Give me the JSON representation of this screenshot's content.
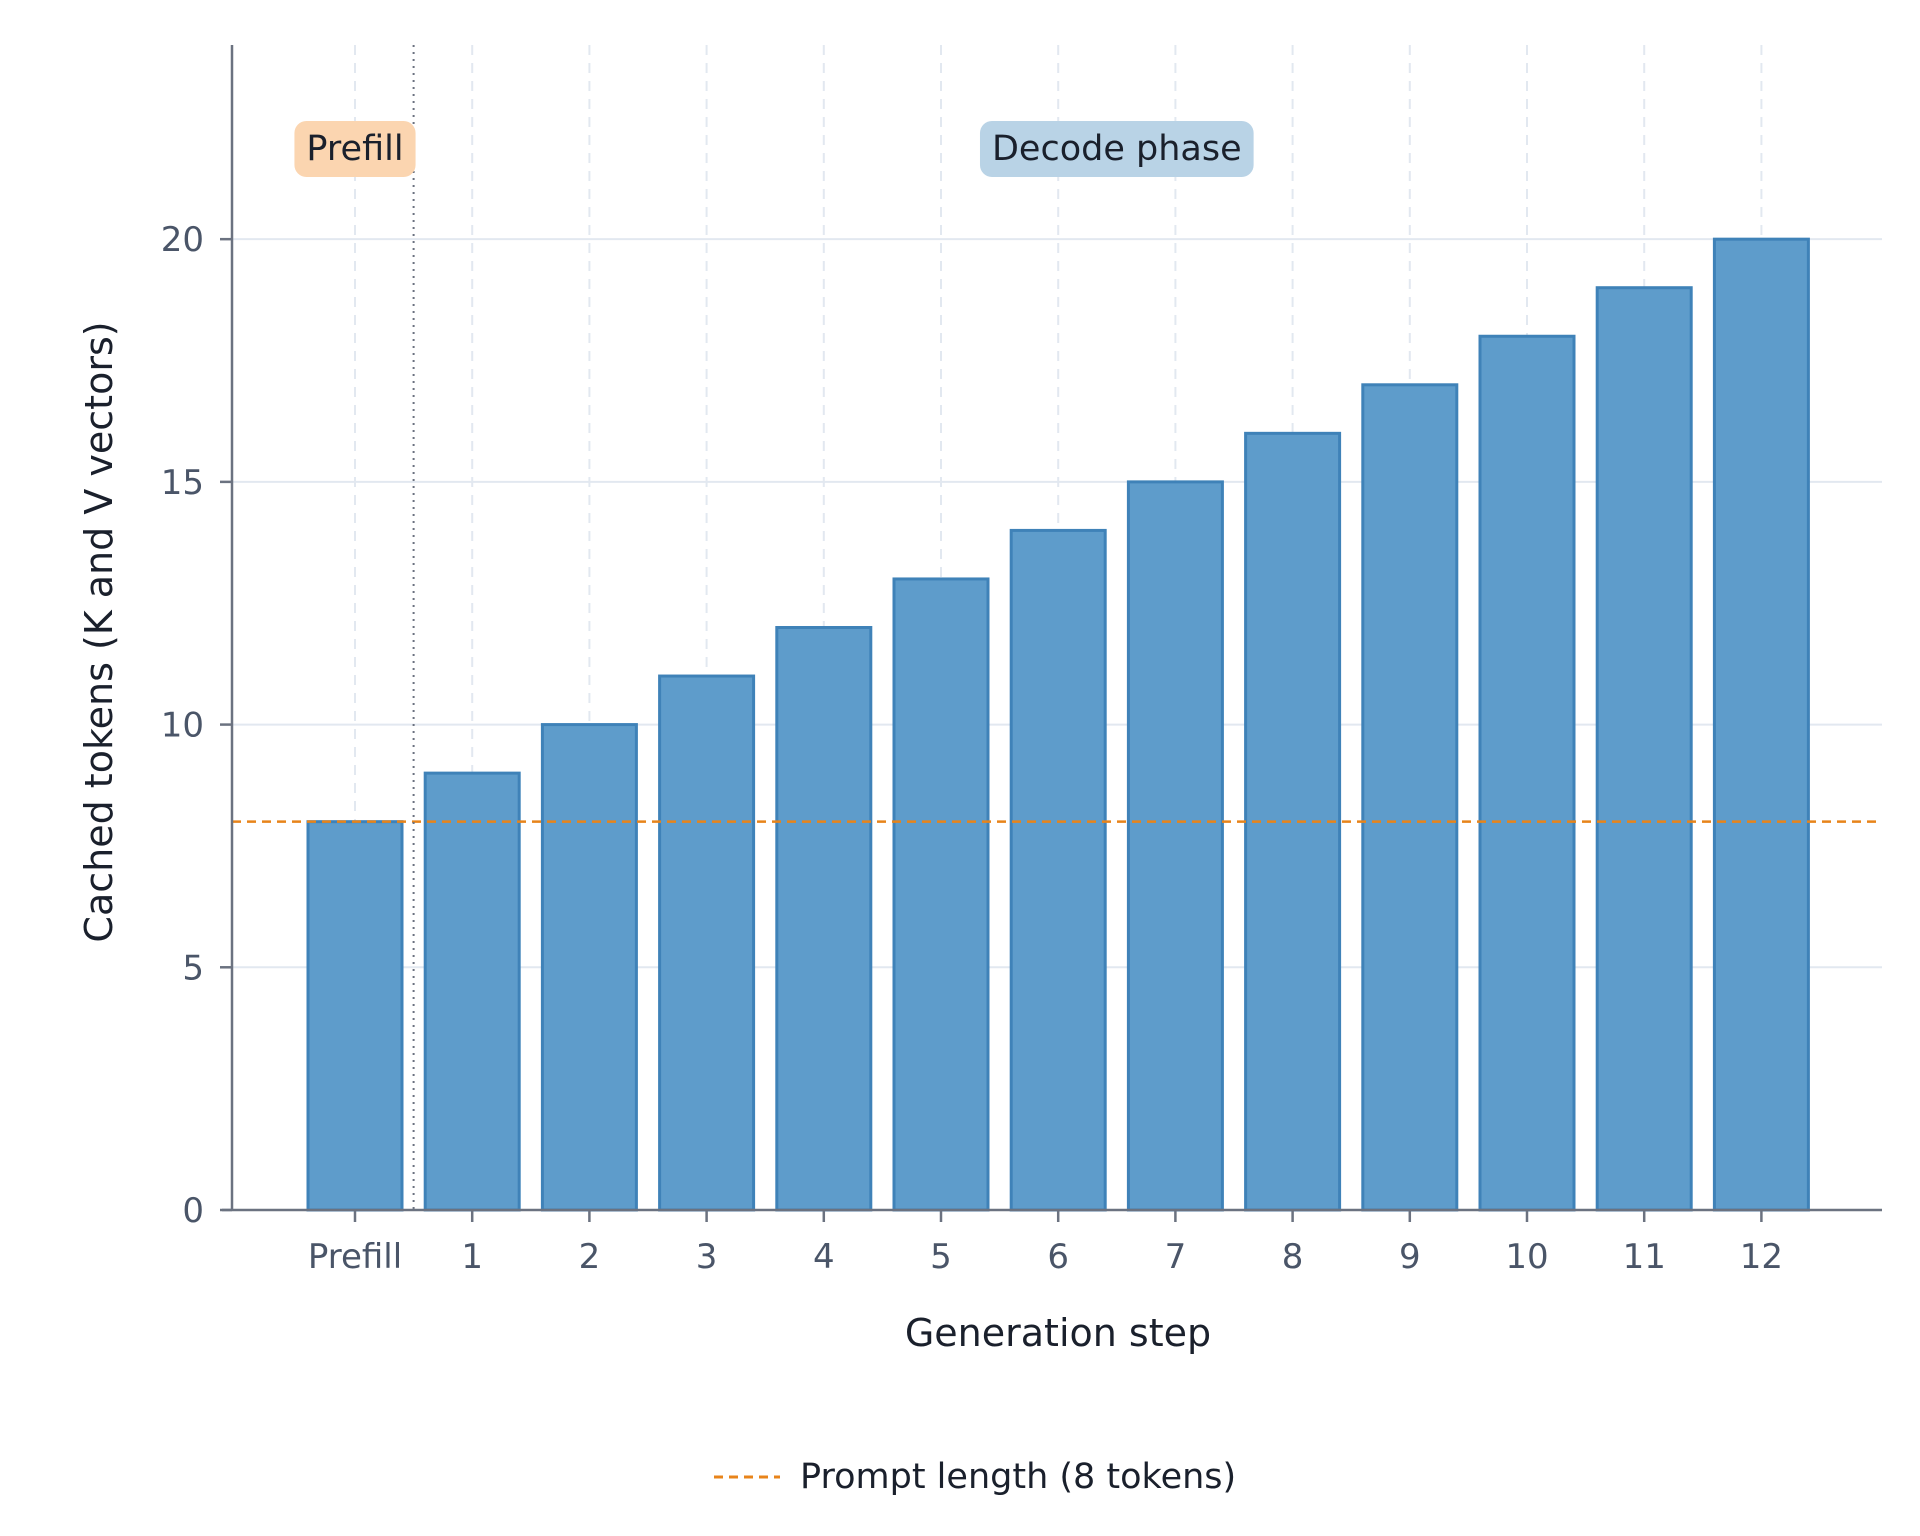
{
  "chart_data": {
    "type": "bar",
    "categories": [
      "Prefill",
      "1",
      "2",
      "3",
      "4",
      "5",
      "6",
      "7",
      "8",
      "9",
      "10",
      "11",
      "12"
    ],
    "values": [
      8,
      9,
      10,
      11,
      12,
      13,
      14,
      15,
      16,
      17,
      18,
      19,
      20
    ],
    "xlabel": "Generation step",
    "ylabel": "Cached tokens (K and V vectors)",
    "ylim": [
      0,
      24
    ],
    "yticks": [
      0,
      5,
      10,
      15,
      20
    ],
    "grid": true,
    "reference_line": {
      "y": 8,
      "label": "Prompt length (8 tokens)",
      "color": "#e8841a",
      "style": "dashed"
    },
    "phase_divider": {
      "between": [
        "Prefill",
        "1"
      ],
      "style": "dotted"
    },
    "annotations": [
      {
        "text": "Prefill",
        "anchor_category": "Prefill",
        "color": "#fbd5b0"
      },
      {
        "text": "Decode phase",
        "anchor_category": "6.5",
        "color": "#b9d3e6"
      }
    ],
    "legend": {
      "placement": "bottom-center"
    },
    "colors": {
      "bar_fill": "#5e9ccb",
      "bar_edge": "#3f82b8",
      "axis": "#6b7280",
      "grid": "#e2e8f0"
    }
  }
}
